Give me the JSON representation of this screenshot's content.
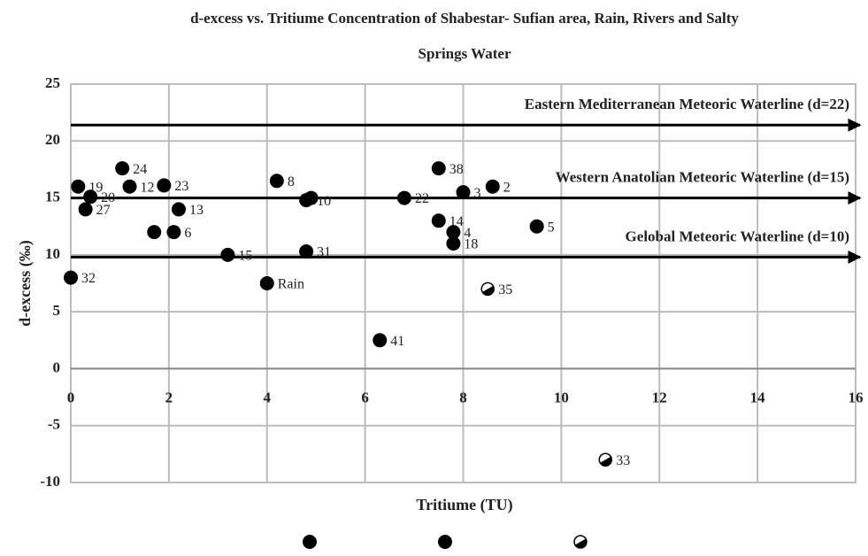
{
  "chart_data": {
    "type": "scatter",
    "title": [
      "d-excess vs. Tritiume Concentration  of Shabestar- Sufian area, Rain, Rivers and Salty",
      "Springs Water"
    ],
    "x_label": "Tritiume (TU)",
    "y_label": "d-excess (‰)",
    "xlim": [
      0,
      16
    ],
    "xticks": [
      0,
      2,
      4,
      6,
      8,
      10,
      12,
      14,
      16
    ],
    "ylim": [
      -10,
      25
    ],
    "yticks": [
      -10,
      -5,
      0,
      5,
      10,
      15,
      20,
      25
    ],
    "grid": true,
    "series": [
      {
        "color": "#000000",
        "marker": "filled",
        "x": [
          0,
          0.15,
          0.4,
          0.3,
          1.05,
          1.2,
          1.9,
          2.2,
          2.1,
          1.7,
          3.2,
          4.2,
          4.8,
          4.9,
          4.8,
          6.3,
          6.8,
          7.5,
          7.5,
          7.8,
          7.8,
          8,
          8.6,
          9.5
        ],
        "values": [
          8,
          16,
          15.1,
          14,
          17.6,
          16,
          16.1,
          14,
          12,
          12,
          10,
          16.5,
          14.8,
          15,
          10.3,
          2.5,
          15,
          17.6,
          13,
          12,
          11,
          15.5,
          16,
          12.5
        ],
        "labels": [
          "32",
          "19",
          "20",
          "27",
          "24",
          "12",
          "23",
          "13",
          "6",
          null,
          "15",
          "8",
          "10",
          null,
          "31",
          "41",
          "22",
          "38",
          "14",
          "4",
          "18",
          "3",
          "2",
          "5"
        ]
      },
      {
        "color": "#000000",
        "marker": "filled",
        "x": [
          4
        ],
        "values": [
          7.5
        ],
        "labels": [
          "Rain"
        ]
      },
      {
        "color": "#000000",
        "marker": "half",
        "x": [
          8.5,
          10.9
        ],
        "values": [
          7,
          -8
        ],
        "labels": [
          "35",
          "33"
        ]
      }
    ],
    "annotations": [
      {
        "text": "Eastern Mediterranean Meteoric Waterline (d=22)",
        "y": 21.4
      },
      {
        "text": "Western Anatolian Meteoric Waterline (d=15)",
        "y": 15
      },
      {
        "text": "Gelobal Meteoric Waterline (d=10)",
        "y": 9.8
      }
    ]
  }
}
